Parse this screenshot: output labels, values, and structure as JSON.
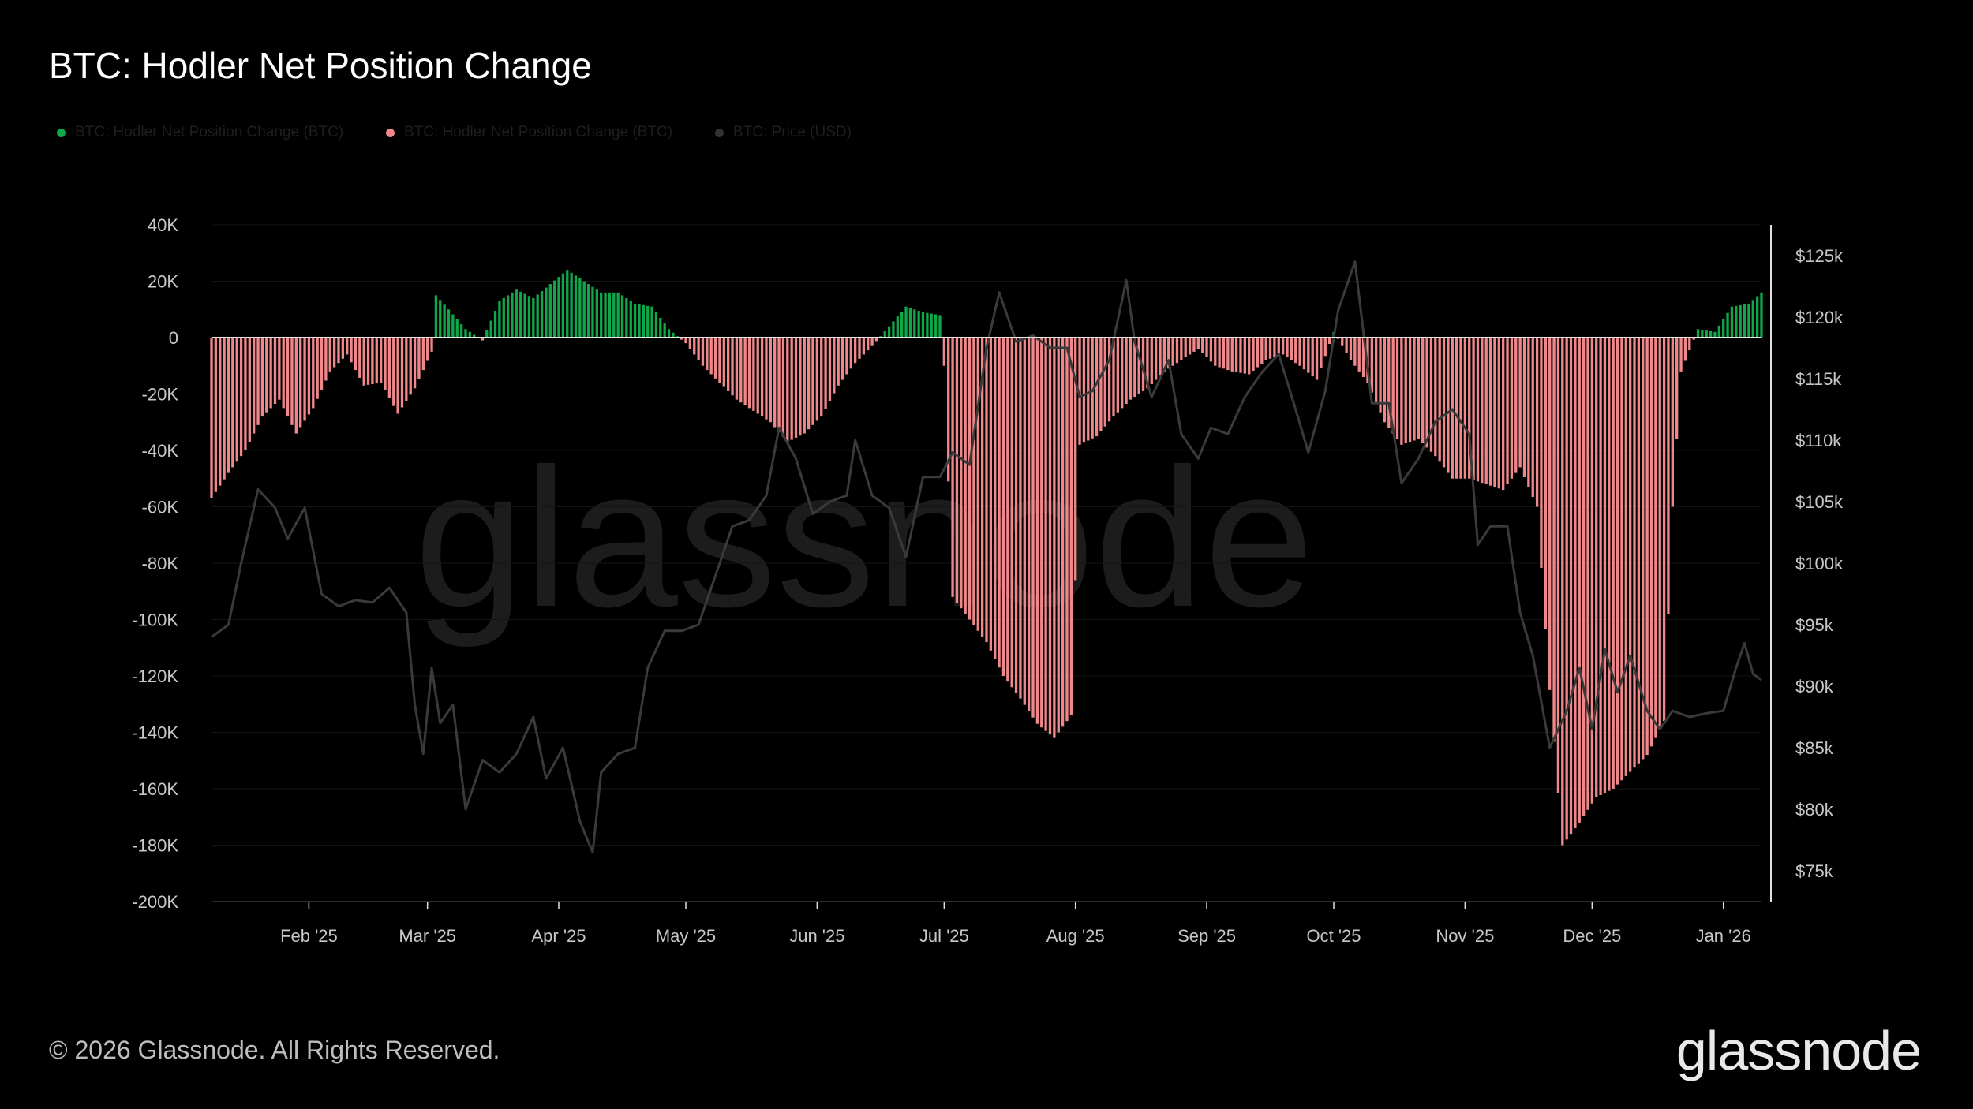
{
  "chart_data": {
    "type": "bar",
    "title": "BTC: Hodler Net Position Change",
    "legend": [
      {
        "name": "BTC: Hodler Net Position Change (BTC)",
        "color": "#10a64a"
      },
      {
        "name": "BTC: Hodler Net Position Change (BTC)",
        "color": "#f0878a"
      },
      {
        "name": "BTC: Price (USD)",
        "color": "#333333"
      }
    ],
    "x_range": [
      "2025-01-09",
      "2026-01-10"
    ],
    "x_ticks": [
      {
        "label": "Feb '25",
        "date": "2025-02-01"
      },
      {
        "label": "Mar '25",
        "date": "2025-03-01"
      },
      {
        "label": "Apr '25",
        "date": "2025-04-01"
      },
      {
        "label": "May '25",
        "date": "2025-05-01"
      },
      {
        "label": "Jun '25",
        "date": "2025-06-01"
      },
      {
        "label": "Jul '25",
        "date": "2025-07-01"
      },
      {
        "label": "Aug '25",
        "date": "2025-08-01"
      },
      {
        "label": "Sep '25",
        "date": "2025-09-01"
      },
      {
        "label": "Oct '25",
        "date": "2025-10-01"
      },
      {
        "label": "Nov '25",
        "date": "2025-11-01"
      },
      {
        "label": "Dec '25",
        "date": "2025-12-01"
      },
      {
        "label": "Jan '26",
        "date": "2026-01-01"
      }
    ],
    "y_left": {
      "ylim": [
        -200000,
        40000
      ],
      "ticks": [
        {
          "label": "40K",
          "value": 40000
        },
        {
          "label": "20K",
          "value": 20000
        },
        {
          "label": "0",
          "value": 0
        },
        {
          "label": "-20K",
          "value": -20000
        },
        {
          "label": "-40K",
          "value": -40000
        },
        {
          "label": "-60K",
          "value": -60000
        },
        {
          "label": "-80K",
          "value": -80000
        },
        {
          "label": "-100K",
          "value": -100000
        },
        {
          "label": "-120K",
          "value": -120000
        },
        {
          "label": "-140K",
          "value": -140000
        },
        {
          "label": "-160K",
          "value": -160000
        },
        {
          "label": "-180K",
          "value": -180000
        },
        {
          "label": "-200K",
          "value": -200000
        }
      ]
    },
    "y_right": {
      "ylim": [
        72500,
        127500
      ],
      "ticks": [
        {
          "label": "$125k",
          "value": 125000
        },
        {
          "label": "$120k",
          "value": 120000
        },
        {
          "label": "$115k",
          "value": 115000
        },
        {
          "label": "$110k",
          "value": 110000
        },
        {
          "label": "$105k",
          "value": 105000
        },
        {
          "label": "$100k",
          "value": 100000
        },
        {
          "label": "$95k",
          "value": 95000
        },
        {
          "label": "$90k",
          "value": 90000
        },
        {
          "label": "$85k",
          "value": 85000
        },
        {
          "label": "$80k",
          "value": 80000
        },
        {
          "label": "$75k",
          "value": 75000
        }
      ]
    },
    "series": [
      {
        "name": "BTC: Hodler Net Position Change (BTC)",
        "axis": "left",
        "points": [
          [
            "2025-01-09",
            -57000
          ],
          [
            "2025-01-13",
            -48000
          ],
          [
            "2025-01-17",
            -40000
          ],
          [
            "2025-01-21",
            -28000
          ],
          [
            "2025-01-25",
            -22000
          ],
          [
            "2025-01-29",
            -34000
          ],
          [
            "2025-02-02",
            -25000
          ],
          [
            "2025-02-06",
            -12000
          ],
          [
            "2025-02-10",
            -6000
          ],
          [
            "2025-02-14",
            -17000
          ],
          [
            "2025-02-18",
            -16000
          ],
          [
            "2025-02-22",
            -27000
          ],
          [
            "2025-02-26",
            -18000
          ],
          [
            "2025-03-02",
            -5000
          ],
          [
            "2025-03-03",
            15000
          ],
          [
            "2025-03-06",
            10000
          ],
          [
            "2025-03-10",
            3000
          ],
          [
            "2025-03-14",
            -1000
          ],
          [
            "2025-03-18",
            13000
          ],
          [
            "2025-03-22",
            17000
          ],
          [
            "2025-03-26",
            14000
          ],
          [
            "2025-03-30",
            19000
          ],
          [
            "2025-04-03",
            24000
          ],
          [
            "2025-04-07",
            20000
          ],
          [
            "2025-04-11",
            16000
          ],
          [
            "2025-04-15",
            16000
          ],
          [
            "2025-04-19",
            12000
          ],
          [
            "2025-04-23",
            11000
          ],
          [
            "2025-04-27",
            3000
          ],
          [
            "2025-05-01",
            -2000
          ],
          [
            "2025-05-05",
            -10000
          ],
          [
            "2025-05-09",
            -16000
          ],
          [
            "2025-05-13",
            -22000
          ],
          [
            "2025-05-17",
            -26000
          ],
          [
            "2025-05-21",
            -30000
          ],
          [
            "2025-05-25",
            -37000
          ],
          [
            "2025-05-29",
            -34000
          ],
          [
            "2025-06-02",
            -28000
          ],
          [
            "2025-06-06",
            -17000
          ],
          [
            "2025-06-10",
            -9000
          ],
          [
            "2025-06-14",
            -3000
          ],
          [
            "2025-06-18",
            4000
          ],
          [
            "2025-06-22",
            11000
          ],
          [
            "2025-06-26",
            9000
          ],
          [
            "2025-06-30",
            8000
          ],
          [
            "2025-07-01",
            -10000
          ],
          [
            "2025-07-03",
            -92000
          ],
          [
            "2025-07-07",
            -100000
          ],
          [
            "2025-07-11",
            -108000
          ],
          [
            "2025-07-15",
            -120000
          ],
          [
            "2025-07-19",
            -128000
          ],
          [
            "2025-07-23",
            -137000
          ],
          [
            "2025-07-27",
            -142000
          ],
          [
            "2025-07-31",
            -134000
          ],
          [
            "2025-08-02",
            -38000
          ],
          [
            "2025-08-06",
            -35000
          ],
          [
            "2025-08-10",
            -28000
          ],
          [
            "2025-08-14",
            -22000
          ],
          [
            "2025-08-18",
            -18000
          ],
          [
            "2025-08-22",
            -12000
          ],
          [
            "2025-08-26",
            -8000
          ],
          [
            "2025-08-30",
            -4000
          ],
          [
            "2025-09-03",
            -10000
          ],
          [
            "2025-09-07",
            -12000
          ],
          [
            "2025-09-11",
            -13000
          ],
          [
            "2025-09-15",
            -8000
          ],
          [
            "2025-09-19",
            -6000
          ],
          [
            "2025-09-23",
            -10000
          ],
          [
            "2025-09-27",
            -15000
          ],
          [
            "2025-10-01",
            2000
          ],
          [
            "2025-10-05",
            -8000
          ],
          [
            "2025-10-09",
            -16000
          ],
          [
            "2025-10-13",
            -30000
          ],
          [
            "2025-10-17",
            -38000
          ],
          [
            "2025-10-21",
            -36000
          ],
          [
            "2025-10-25",
            -42000
          ],
          [
            "2025-10-29",
            -50000
          ],
          [
            "2025-11-02",
            -50000
          ],
          [
            "2025-11-06",
            -52000
          ],
          [
            "2025-11-10",
            -54000
          ],
          [
            "2025-11-14",
            -46000
          ],
          [
            "2025-11-18",
            -60000
          ],
          [
            "2025-11-21",
            -125000
          ],
          [
            "2025-11-24",
            -180000
          ],
          [
            "2025-11-28",
            -172000
          ],
          [
            "2025-12-02",
            -163000
          ],
          [
            "2025-12-06",
            -160000
          ],
          [
            "2025-12-10",
            -154000
          ],
          [
            "2025-12-14",
            -148000
          ],
          [
            "2025-12-18",
            -136000
          ],
          [
            "2025-12-20",
            -60000
          ],
          [
            "2025-12-22",
            -12000
          ],
          [
            "2025-12-26",
            3000
          ],
          [
            "2025-12-30",
            2000
          ],
          [
            "2026-01-03",
            11000
          ],
          [
            "2026-01-07",
            12000
          ],
          [
            "2026-01-10",
            16000
          ]
        ]
      },
      {
        "name": "BTC: Price (USD)",
        "axis": "right",
        "points": [
          [
            "2025-01-09",
            94000
          ],
          [
            "2025-01-13",
            95000
          ],
          [
            "2025-01-16",
            100000
          ],
          [
            "2025-01-20",
            106000
          ],
          [
            "2025-01-24",
            104500
          ],
          [
            "2025-01-27",
            102000
          ],
          [
            "2025-01-31",
            104500
          ],
          [
            "2025-02-04",
            97500
          ],
          [
            "2025-02-08",
            96500
          ],
          [
            "2025-02-12",
            97000
          ],
          [
            "2025-02-16",
            96800
          ],
          [
            "2025-02-20",
            98000
          ],
          [
            "2025-02-24",
            96000
          ],
          [
            "2025-02-26",
            88500
          ],
          [
            "2025-02-28",
            84500
          ],
          [
            "2025-03-02",
            91500
          ],
          [
            "2025-03-04",
            87000
          ],
          [
            "2025-03-07",
            88500
          ],
          [
            "2025-03-10",
            80000
          ],
          [
            "2025-03-14",
            84000
          ],
          [
            "2025-03-18",
            83000
          ],
          [
            "2025-03-22",
            84500
          ],
          [
            "2025-03-26",
            87500
          ],
          [
            "2025-03-29",
            82500
          ],
          [
            "2025-04-02",
            85000
          ],
          [
            "2025-04-06",
            79000
          ],
          [
            "2025-04-09",
            76500
          ],
          [
            "2025-04-11",
            83000
          ],
          [
            "2025-04-15",
            84500
          ],
          [
            "2025-04-19",
            85000
          ],
          [
            "2025-04-22",
            91500
          ],
          [
            "2025-04-26",
            94500
          ],
          [
            "2025-04-30",
            94500
          ],
          [
            "2025-05-04",
            95000
          ],
          [
            "2025-05-08",
            99000
          ],
          [
            "2025-05-12",
            103000
          ],
          [
            "2025-05-16",
            103500
          ],
          [
            "2025-05-20",
            105500
          ],
          [
            "2025-05-23",
            111000
          ],
          [
            "2025-05-27",
            108500
          ],
          [
            "2025-05-31",
            104000
          ],
          [
            "2025-06-04",
            105000
          ],
          [
            "2025-06-08",
            105500
          ],
          [
            "2025-06-10",
            110000
          ],
          [
            "2025-06-14",
            105500
          ],
          [
            "2025-06-18",
            104500
          ],
          [
            "2025-06-22",
            100500
          ],
          [
            "2025-06-26",
            107000
          ],
          [
            "2025-06-30",
            107000
          ],
          [
            "2025-07-03",
            109000
          ],
          [
            "2025-07-07",
            108000
          ],
          [
            "2025-07-11",
            117500
          ],
          [
            "2025-07-14",
            122000
          ],
          [
            "2025-07-18",
            118000
          ],
          [
            "2025-07-22",
            118500
          ],
          [
            "2025-07-26",
            117500
          ],
          [
            "2025-07-30",
            117500
          ],
          [
            "2025-08-02",
            113500
          ],
          [
            "2025-08-05",
            114000
          ],
          [
            "2025-08-09",
            116500
          ],
          [
            "2025-08-13",
            123000
          ],
          [
            "2025-08-15",
            118000
          ],
          [
            "2025-08-19",
            113500
          ],
          [
            "2025-08-23",
            116500
          ],
          [
            "2025-08-26",
            110500
          ],
          [
            "2025-08-30",
            108500
          ],
          [
            "2025-09-02",
            111000
          ],
          [
            "2025-09-06",
            110500
          ],
          [
            "2025-09-10",
            113500
          ],
          [
            "2025-09-14",
            115500
          ],
          [
            "2025-09-18",
            117000
          ],
          [
            "2025-09-22",
            112500
          ],
          [
            "2025-09-25",
            109000
          ],
          [
            "2025-09-29",
            114000
          ],
          [
            "2025-10-02",
            120500
          ],
          [
            "2025-10-06",
            124500
          ],
          [
            "2025-10-10",
            113000
          ],
          [
            "2025-10-14",
            113000
          ],
          [
            "2025-10-17",
            106500
          ],
          [
            "2025-10-21",
            108500
          ],
          [
            "2025-10-25",
            111500
          ],
          [
            "2025-10-29",
            112500
          ],
          [
            "2025-11-02",
            110500
          ],
          [
            "2025-11-04",
            101500
          ],
          [
            "2025-11-07",
            103000
          ],
          [
            "2025-11-11",
            103000
          ],
          [
            "2025-11-14",
            96000
          ],
          [
            "2025-11-17",
            92500
          ],
          [
            "2025-11-21",
            85000
          ],
          [
            "2025-11-25",
            88000
          ],
          [
            "2025-11-28",
            91500
          ],
          [
            "2025-12-01",
            86500
          ],
          [
            "2025-12-04",
            93000
          ],
          [
            "2025-12-07",
            89500
          ],
          [
            "2025-12-10",
            92500
          ],
          [
            "2025-12-14",
            88000
          ],
          [
            "2025-12-17",
            86500
          ],
          [
            "2025-12-20",
            88000
          ],
          [
            "2025-12-24",
            87500
          ],
          [
            "2025-12-28",
            87800
          ],
          [
            "2026-01-01",
            88000
          ],
          [
            "2026-01-04",
            91500
          ],
          [
            "2026-01-06",
            93500
          ],
          [
            "2026-01-08",
            91000
          ],
          [
            "2026-01-10",
            90500
          ]
        ]
      }
    ]
  },
  "watermark": "glassnode",
  "footer": {
    "copyright": "© 2026 Glassnode. All Rights Reserved.",
    "brand": "glassnode"
  },
  "colors": {
    "background": "#000000",
    "positive_bar": "#10a64a",
    "negative_bar": "#f0878a",
    "price_line": "#3a3a3a",
    "grid": "#151515",
    "axis": "#e0e0e0"
  }
}
